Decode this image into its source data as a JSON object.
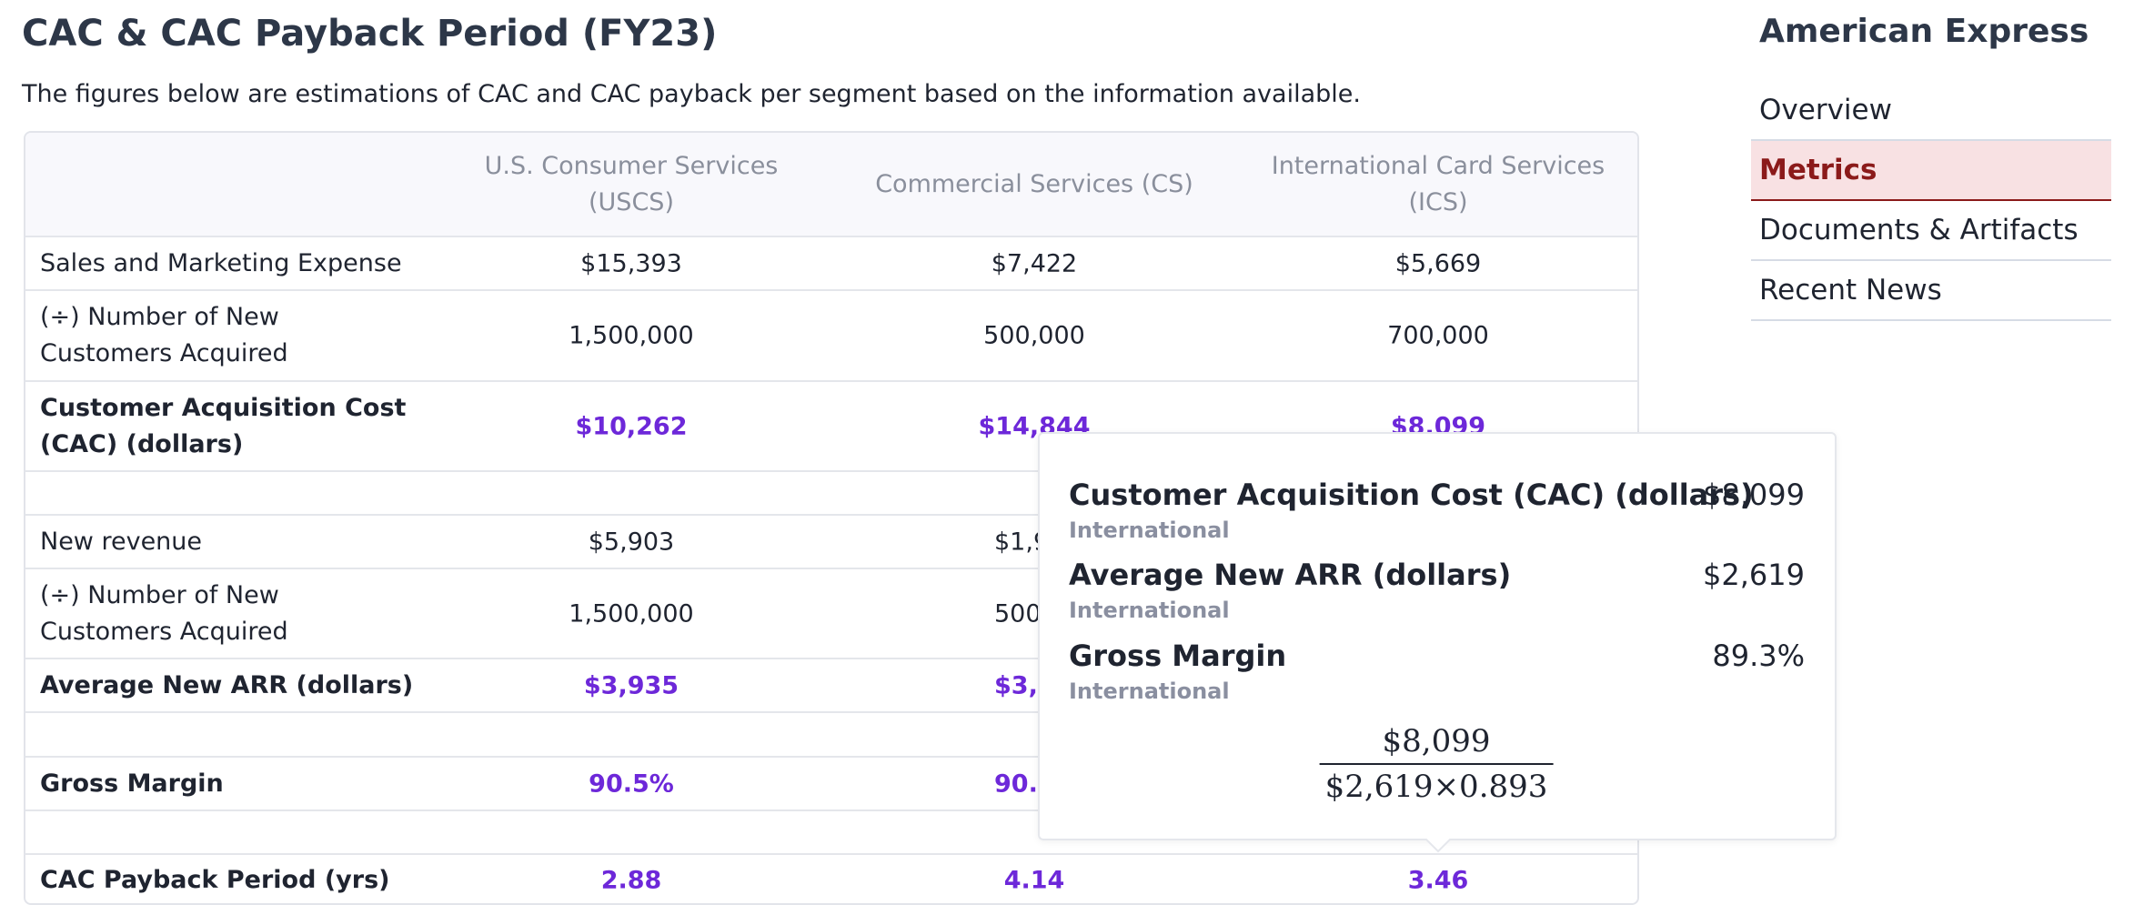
{
  "header": {
    "title": "CAC & CAC Payback Period (FY23)",
    "subtitle": "The figures below are estimations of CAC and CAC payback per segment based on the information available."
  },
  "table": {
    "columns": [
      "U.S. Consumer Services (USCS)",
      "Commercial Services (CS)",
      "International Card Services (ICS)"
    ],
    "rows": [
      {
        "label": "Sales and Marketing Expense",
        "values": [
          "$15,393",
          "$7,422",
          "$5,669"
        ]
      },
      {
        "label": "(÷) Number of New Customers Acquired",
        "values": [
          "1,500,000",
          "500,000",
          "700,000"
        ]
      },
      {
        "label": "Customer Acquisition Cost (CAC) (dollars)",
        "values": [
          "$10,262",
          "$14,844",
          "$8,099"
        ]
      },
      {
        "label": "New revenue",
        "values": [
          "$5,903",
          "$1,9",
          null
        ]
      },
      {
        "label": "(÷) Number of New Customers Acquired",
        "values": [
          "1,500,000",
          "500,",
          null
        ]
      },
      {
        "label": "Average New ARR (dollars)",
        "values": [
          "$3,935",
          "$3,9",
          null
        ]
      },
      {
        "label": "Gross Margin",
        "values": [
          "90.5%",
          "90.",
          null
        ]
      },
      {
        "label": "CAC Payback Period (yrs)",
        "values": [
          "2.88",
          "4.14",
          "3.46"
        ]
      }
    ]
  },
  "tooltip": {
    "items": [
      {
        "label": "Customer Acquisition Cost (CAC) (dollars)",
        "segment": "International",
        "value": "$8,099"
      },
      {
        "label": "Average New ARR (dollars)",
        "segment": "International",
        "value": "$2,619"
      },
      {
        "label": "Gross Margin",
        "segment": "International",
        "value": "89.3%"
      }
    ],
    "formula": {
      "numerator": "$8,099",
      "denominator": "$2,619×0.893"
    }
  },
  "sidebar": {
    "title": "American Express",
    "nav": [
      "Overview",
      "Metrics",
      "Documents & Artifacts",
      "Recent News"
    ],
    "active": 1
  }
}
